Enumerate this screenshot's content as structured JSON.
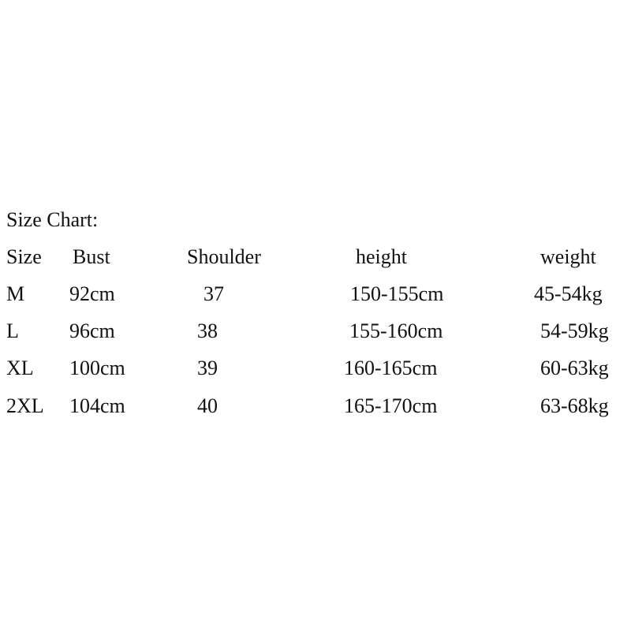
{
  "title": "Size Chart:",
  "headers": [
    "Size",
    "Bust",
    "Shoulder",
    "height",
    "weight"
  ],
  "rows": [
    [
      "M",
      "92cm",
      "37",
      "150-155cm",
      "45-54kg"
    ],
    [
      "L",
      "96cm",
      "38",
      "155-160cm",
      "54-59kg"
    ],
    [
      "XL",
      "100cm",
      "39",
      "160-165cm",
      "60-63kg"
    ],
    [
      "2XL",
      "104cm",
      "40",
      "165-170cm",
      "63-68kg"
    ]
  ]
}
